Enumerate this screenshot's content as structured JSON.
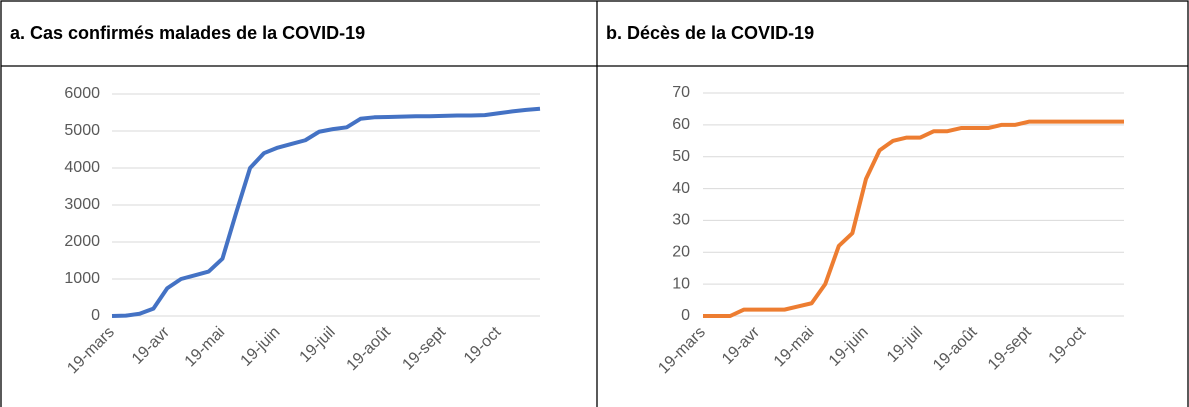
{
  "chart_data": [
    {
      "type": "line",
      "title": "a. Cas confirmés malades de la COVID-19",
      "categories": [
        "19-mars",
        null,
        null,
        null,
        "19-avr",
        null,
        null,
        null,
        "19-mai",
        null,
        null,
        null,
        "19-juin",
        null,
        null,
        null,
        "19-juil",
        null,
        null,
        null,
        "19-août",
        null,
        null,
        null,
        "19-sept",
        null,
        null,
        null,
        "19-oct",
        null,
        null,
        null
      ],
      "series": [
        {
          "name": "Cas confirmés",
          "color": "#4472c4",
          "values": [
            0,
            10,
            60,
            200,
            750,
            1000,
            1100,
            1200,
            1550,
            2800,
            4000,
            4400,
            4550,
            4650,
            4750,
            4980,
            5050,
            5100,
            5330,
            5370,
            5380,
            5390,
            5400,
            5400,
            5410,
            5420,
            5420,
            5430,
            5480,
            5530,
            5570,
            5600
          ]
        }
      ],
      "ylim": [
        0,
        6000
      ],
      "yticks": [
        0,
        1000,
        2000,
        3000,
        4000,
        5000,
        6000
      ],
      "grid": true
    },
    {
      "type": "line",
      "title": "b. Décès de la COVID-19",
      "categories": [
        "19-mars",
        null,
        null,
        null,
        "19-avr",
        null,
        null,
        null,
        "19-mai",
        null,
        null,
        null,
        "19-juin",
        null,
        null,
        null,
        "19-juil",
        null,
        null,
        null,
        "19-août",
        null,
        null,
        null,
        "19-sept",
        null,
        null,
        null,
        "19-oct",
        null,
        null,
        null
      ],
      "series": [
        {
          "name": "Décès",
          "color": "#ed7d31",
          "values": [
            0,
            0,
            0,
            2,
            2,
            2,
            2,
            3,
            4,
            10,
            22,
            26,
            43,
            52,
            55,
            56,
            56,
            58,
            58,
            59,
            59,
            59,
            60,
            60,
            61,
            61,
            61,
            61,
            61,
            61,
            61,
            61
          ]
        }
      ],
      "ylim": [
        0,
        70
      ],
      "yticks": [
        0,
        10,
        20,
        30,
        40,
        50,
        60,
        70
      ],
      "grid": true
    }
  ]
}
